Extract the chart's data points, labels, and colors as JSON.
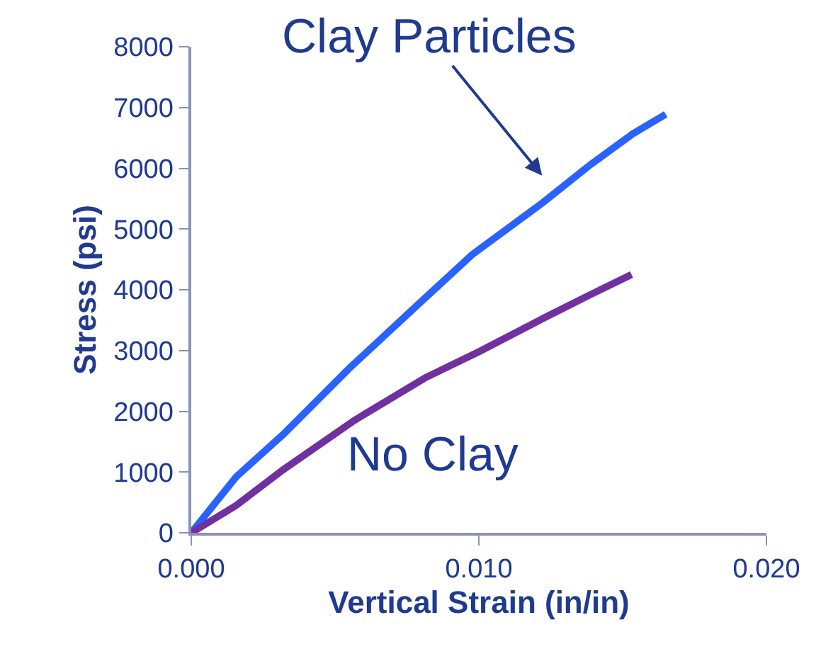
{
  "chart_data": {
    "type": "line",
    "xlabel": "Vertical Strain (in/in)",
    "ylabel": "Stress (psi)",
    "series": [
      {
        "color": "#2962ff",
        "x": [
          0,
          0.00156,
          0.0032,
          0.0055,
          0.0078,
          0.00977,
          0.01224,
          0.01388,
          0.01536,
          0.0165
        ],
        "values": [
          0,
          920,
          1620,
          2710,
          3720,
          4580,
          5440,
          6060,
          6570,
          6890
        ]
      },
      {
        "color": "#7030a0",
        "x": [
          0,
          0.00156,
          0.0032,
          0.00567,
          0.00813,
          0.01,
          0.01224,
          0.01388,
          0.01531
        ],
        "values": [
          0,
          450,
          1040,
          1850,
          2550,
          2980,
          3530,
          3920,
          4250
        ]
      }
    ],
    "annotations": [
      "Clay Particles",
      "No Clay"
    ],
    "xlim": [
      0,
      0.02
    ],
    "xticks": [
      {
        "value": 0,
        "label": "0.000"
      },
      {
        "value": 0.01,
        "label": "0.010"
      },
      {
        "value": 0.02,
        "label": "0.020"
      }
    ],
    "ylim": [
      0,
      8000
    ],
    "yticks": [
      0,
      1000,
      2000,
      3000,
      4000,
      5000,
      6000,
      7000,
      8000
    ],
    "marker": "none",
    "line_style": "solid"
  }
}
